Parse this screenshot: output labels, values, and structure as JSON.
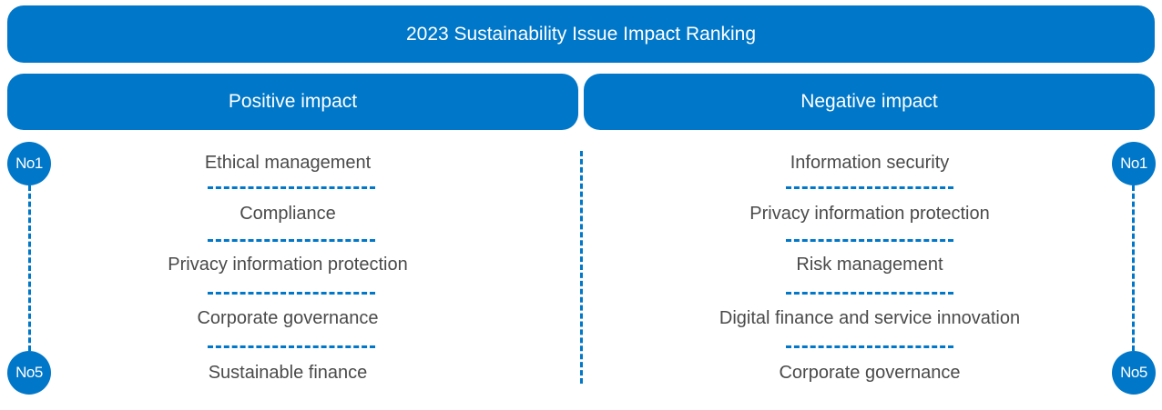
{
  "title": "2023 Sustainability Issue Impact Ranking",
  "positive": {
    "header": "Positive impact",
    "items": [
      "Ethical management",
      "Compliance",
      "Privacy information protection",
      "Corporate governance",
      "Sustainable finance"
    ]
  },
  "negative": {
    "header": "Negative impact",
    "items": [
      "Information security",
      "Privacy information protection",
      "Risk management",
      "Digital finance and service innovation",
      "Corporate governance"
    ]
  },
  "ranks": {
    "top": "No1",
    "bottom": "No5"
  },
  "colors": {
    "accent": "#0077c8",
    "text": "#4a4a4a"
  }
}
